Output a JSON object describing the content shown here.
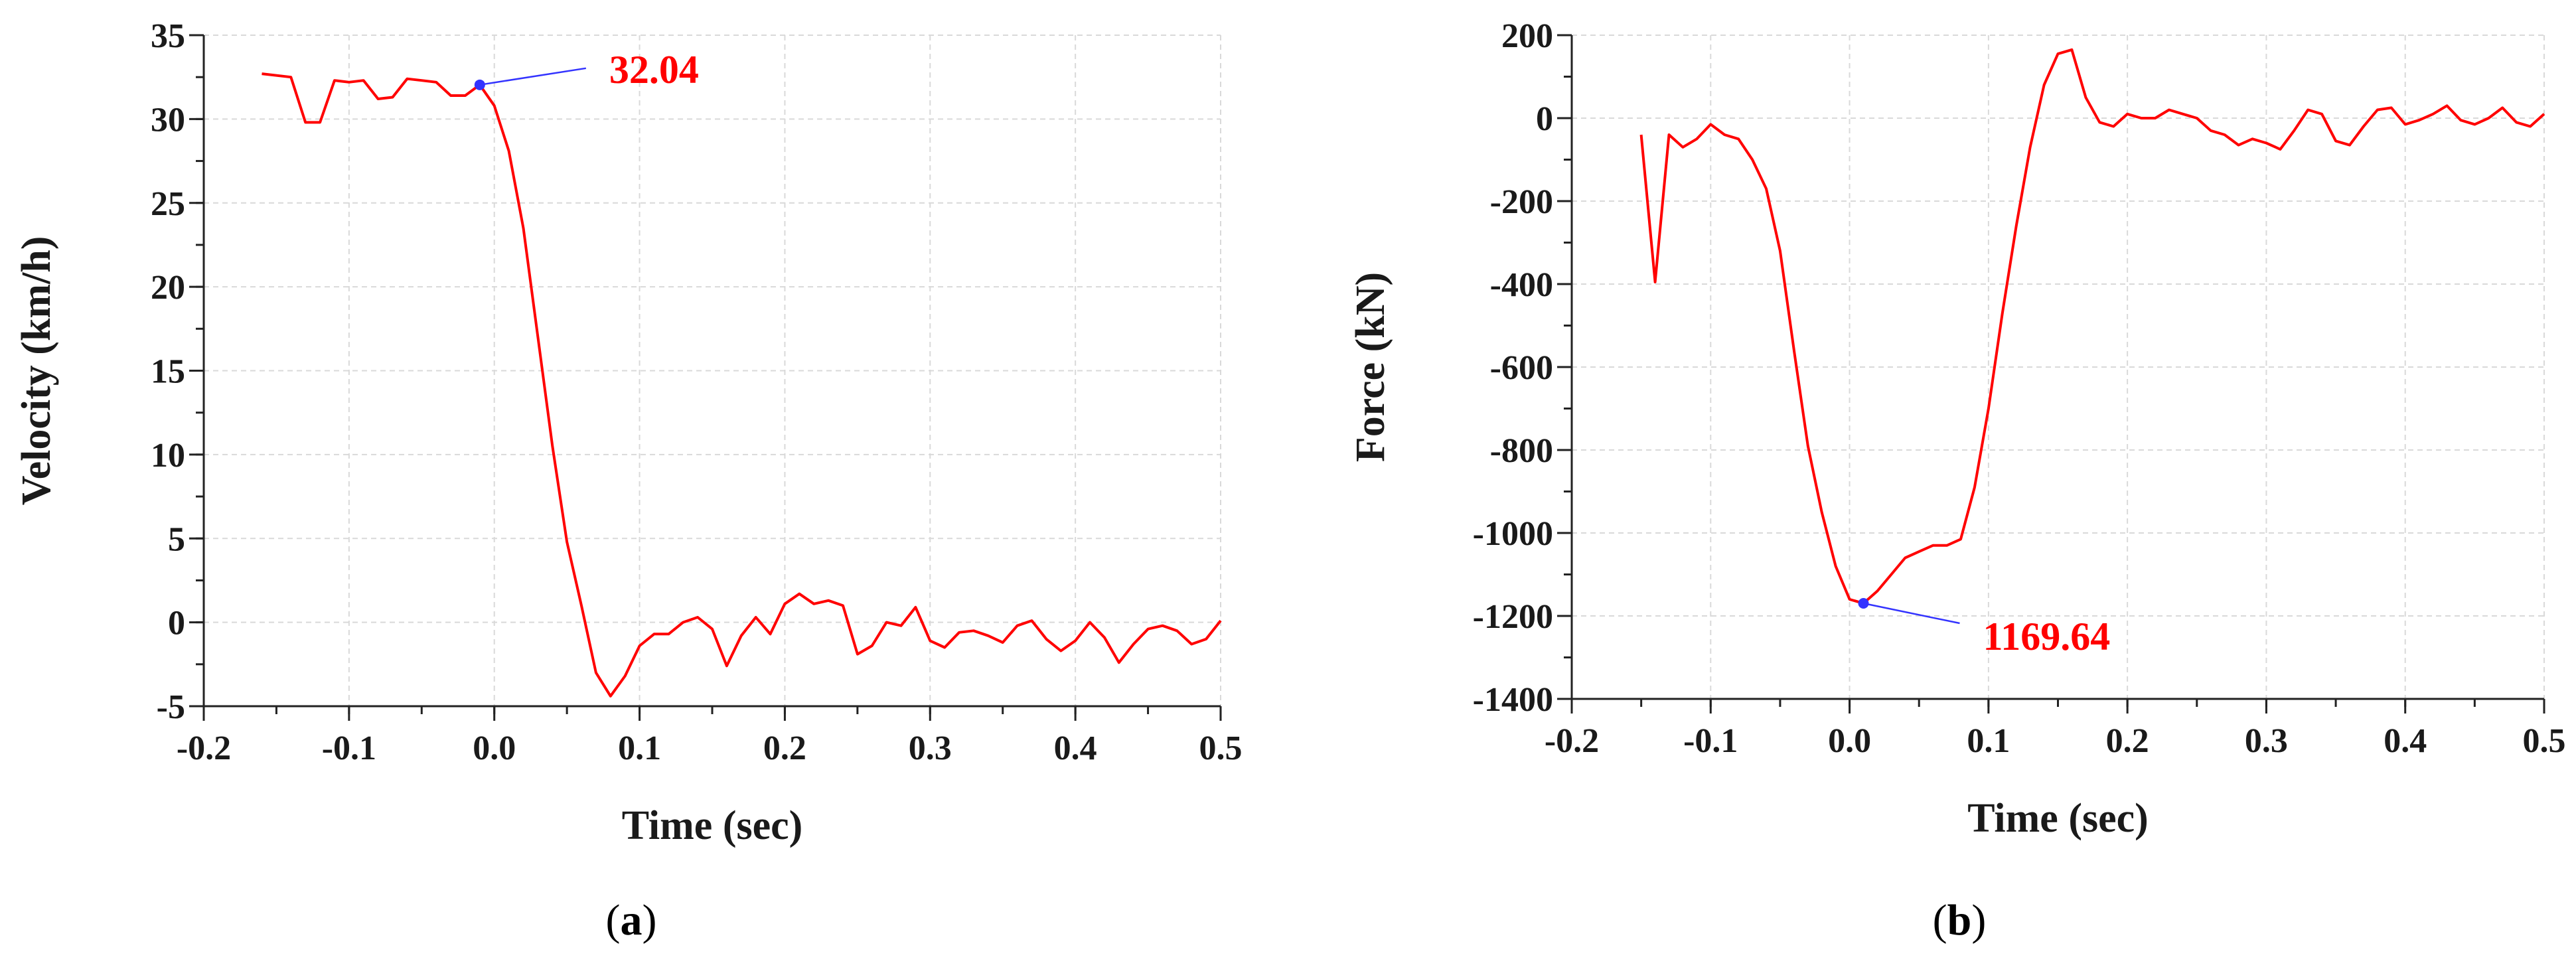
{
  "chart_data": [
    {
      "type": "line",
      "panel_label": "a",
      "xlabel": "Time (sec)",
      "ylabel": "Velocity (km/h)",
      "xlim": [
        -0.2,
        0.5
      ],
      "ylim": [
        -5,
        35
      ],
      "xticks": [
        "-0.2",
        "-0.1",
        "0.0",
        "0.1",
        "0.2",
        "0.3",
        "0.4",
        "0.5"
      ],
      "yticks": [
        "-5",
        "0",
        "5",
        "10",
        "15",
        "20",
        "25",
        "30",
        "35"
      ],
      "grid": true,
      "line_color": "#ff0000",
      "series": [
        {
          "x": [
            -0.16,
            -0.14,
            -0.13,
            -0.12,
            -0.11,
            -0.1,
            -0.09,
            -0.08,
            -0.07,
            -0.06,
            -0.05,
            -0.04,
            -0.03,
            -0.02,
            -0.01,
            0.0,
            0.01,
            0.02,
            0.03,
            0.04,
            0.05,
            0.06,
            0.07,
            0.08,
            0.09,
            0.1,
            0.11,
            0.12,
            0.13,
            0.14,
            0.15,
            0.16,
            0.17,
            0.18,
            0.19,
            0.2,
            0.21,
            0.22,
            0.23,
            0.24,
            0.25,
            0.26,
            0.27,
            0.28,
            0.29,
            0.3,
            0.31,
            0.32,
            0.33,
            0.34,
            0.35,
            0.36,
            0.37,
            0.38,
            0.39,
            0.4,
            0.41,
            0.42,
            0.43,
            0.44,
            0.45,
            0.46,
            0.47,
            0.48,
            0.49,
            0.5
          ],
          "y": [
            32.7,
            32.5,
            29.8,
            29.8,
            32.3,
            32.2,
            32.3,
            31.2,
            31.3,
            32.4,
            32.3,
            32.2,
            31.4,
            31.4,
            32.04,
            30.8,
            28.1,
            23.5,
            17.0,
            10.5,
            4.8,
            1.0,
            -3.0,
            -4.4,
            -3.2,
            -1.4,
            -0.7,
            -0.7,
            0.0,
            0.3,
            -0.4,
            -2.6,
            -0.8,
            0.3,
            -0.7,
            1.1,
            1.7,
            1.1,
            1.3,
            1.0,
            -1.9,
            -1.4,
            0.0,
            -0.2,
            0.9,
            -1.1,
            -1.5,
            -0.6,
            -0.5,
            -0.8,
            -1.2,
            -0.2,
            0.1,
            -1.0,
            -1.7,
            -1.1,
            0.0,
            -0.9,
            -2.4,
            -1.3,
            -0.4,
            -0.2,
            -0.5,
            -1.3,
            -1.0,
            0.1
          ]
        }
      ],
      "marker": {
        "x": -0.01,
        "y": 32.04,
        "label": "32.04",
        "color": "#3333ff"
      }
    },
    {
      "type": "line",
      "panel_label": "b",
      "xlabel": "Time (sec)",
      "ylabel": "Force (kN)",
      "xlim": [
        -0.2,
        0.5
      ],
      "ylim": [
        -1400,
        200
      ],
      "xticks": [
        "-0.2",
        "-0.1",
        "0.0",
        "0.1",
        "0.2",
        "0.3",
        "0.4",
        "0.5"
      ],
      "yticks": [
        "-1400",
        "-1200",
        "-1000",
        "-800",
        "-600",
        "-400",
        "-200",
        "0",
        "200"
      ],
      "grid": true,
      "line_color": "#ff0000",
      "series": [
        {
          "x": [
            -0.15,
            -0.14,
            -0.13,
            -0.12,
            -0.11,
            -0.1,
            -0.09,
            -0.08,
            -0.07,
            -0.06,
            -0.05,
            -0.04,
            -0.03,
            -0.02,
            -0.01,
            0.0,
            0.01,
            0.02,
            0.03,
            0.04,
            0.05,
            0.06,
            0.07,
            0.08,
            0.09,
            0.1,
            0.11,
            0.12,
            0.13,
            0.14,
            0.15,
            0.16,
            0.17,
            0.18,
            0.19,
            0.2,
            0.21,
            0.22,
            0.23,
            0.24,
            0.25,
            0.26,
            0.27,
            0.28,
            0.29,
            0.3,
            0.31,
            0.32,
            0.33,
            0.34,
            0.35,
            0.36,
            0.37,
            0.38,
            0.39,
            0.4,
            0.41,
            0.42,
            0.43,
            0.44,
            0.45,
            0.46,
            0.47,
            0.48,
            0.49,
            0.5
          ],
          "y": [
            -40,
            -395,
            -40,
            -70,
            -50,
            -15,
            -40,
            -50,
            -100,
            -170,
            -320,
            -560,
            -790,
            -950,
            -1080,
            -1160,
            -1169.64,
            -1140,
            -1100,
            -1060,
            -1045,
            -1030,
            -1030,
            -1015,
            -890,
            -700,
            -470,
            -260,
            -70,
            80,
            155,
            165,
            50,
            -10,
            -20,
            10,
            0,
            0,
            20,
            10,
            0,
            -30,
            -40,
            -65,
            -50,
            -60,
            -75,
            -30,
            20,
            10,
            -55,
            -65,
            -20,
            20,
            25,
            -15,
            -5,
            10,
            30,
            -5,
            -15,
            0,
            25,
            -10,
            -20,
            10
          ]
        }
      ],
      "marker": {
        "x": 0.01,
        "y": -1169.64,
        "label": "1169.64",
        "color": "#3333ff"
      }
    }
  ]
}
